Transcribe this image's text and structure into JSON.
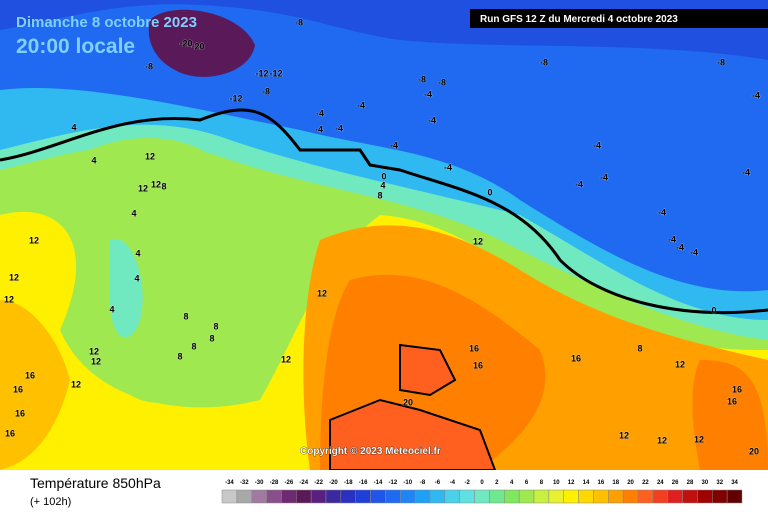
{
  "header": {
    "date": "Dimanche 8 octobre 2023",
    "time": "20:00 locale",
    "run": "Run GFS 12 Z du Mercredi 4 octobre 2023"
  },
  "copyright": "Copyright © 2023 Meteociel.fr",
  "footer": {
    "title": "Température 850hPa",
    "lead": "(+ 102h)"
  },
  "map": {
    "contour_labels": [
      -20,
      -20,
      -8,
      -8,
      -12,
      -12,
      -8,
      -12,
      -8,
      -8,
      -8,
      -8,
      -4,
      -4,
      -4,
      -4,
      -4,
      -4,
      -4,
      -4,
      4,
      4,
      12,
      12,
      12,
      8,
      -4,
      -4,
      -4,
      -4,
      -4,
      0,
      4,
      8,
      0,
      4,
      12,
      12,
      -4,
      -4,
      -4,
      -4,
      4,
      4,
      12,
      12,
      12,
      4,
      8,
      8,
      8,
      8,
      8,
      12,
      12,
      12,
      16,
      16,
      16,
      8,
      0,
      16,
      12,
      16,
      16,
      20,
      16,
      16,
      12,
      16,
      12,
      12,
      12,
      20
    ]
  },
  "legend": {
    "values": [
      -34,
      -32,
      -30,
      -28,
      -26,
      -24,
      -22,
      -20,
      -18,
      -16,
      -14,
      -12,
      -10,
      -8,
      -6,
      -4,
      -2,
      0,
      2,
      4,
      6,
      8,
      10,
      12,
      14,
      16,
      18,
      20,
      22,
      24,
      26,
      28,
      30,
      32,
      34
    ],
    "colors": [
      "#c8c8c8",
      "#a8a8a8",
      "#a07aa0",
      "#8a4f8a",
      "#6e2a6e",
      "#5a1a5a",
      "#5a2080",
      "#3a2aa0",
      "#2a30c0",
      "#1f40d8",
      "#1f55e8",
      "#1f6af0",
      "#1f85f5",
      "#1fa0f5",
      "#30b8f0",
      "#4ad0ea",
      "#60e0e0",
      "#70e8c0",
      "#70e890",
      "#80e860",
      "#a0e850",
      "#c8f040",
      "#e8f030",
      "#fff000",
      "#ffd800",
      "#ffc000",
      "#ffa000",
      "#ff8000",
      "#ff6020",
      "#f04020",
      "#e02020",
      "#c01010",
      "#a00000",
      "#800000",
      "#600000"
    ]
  }
}
